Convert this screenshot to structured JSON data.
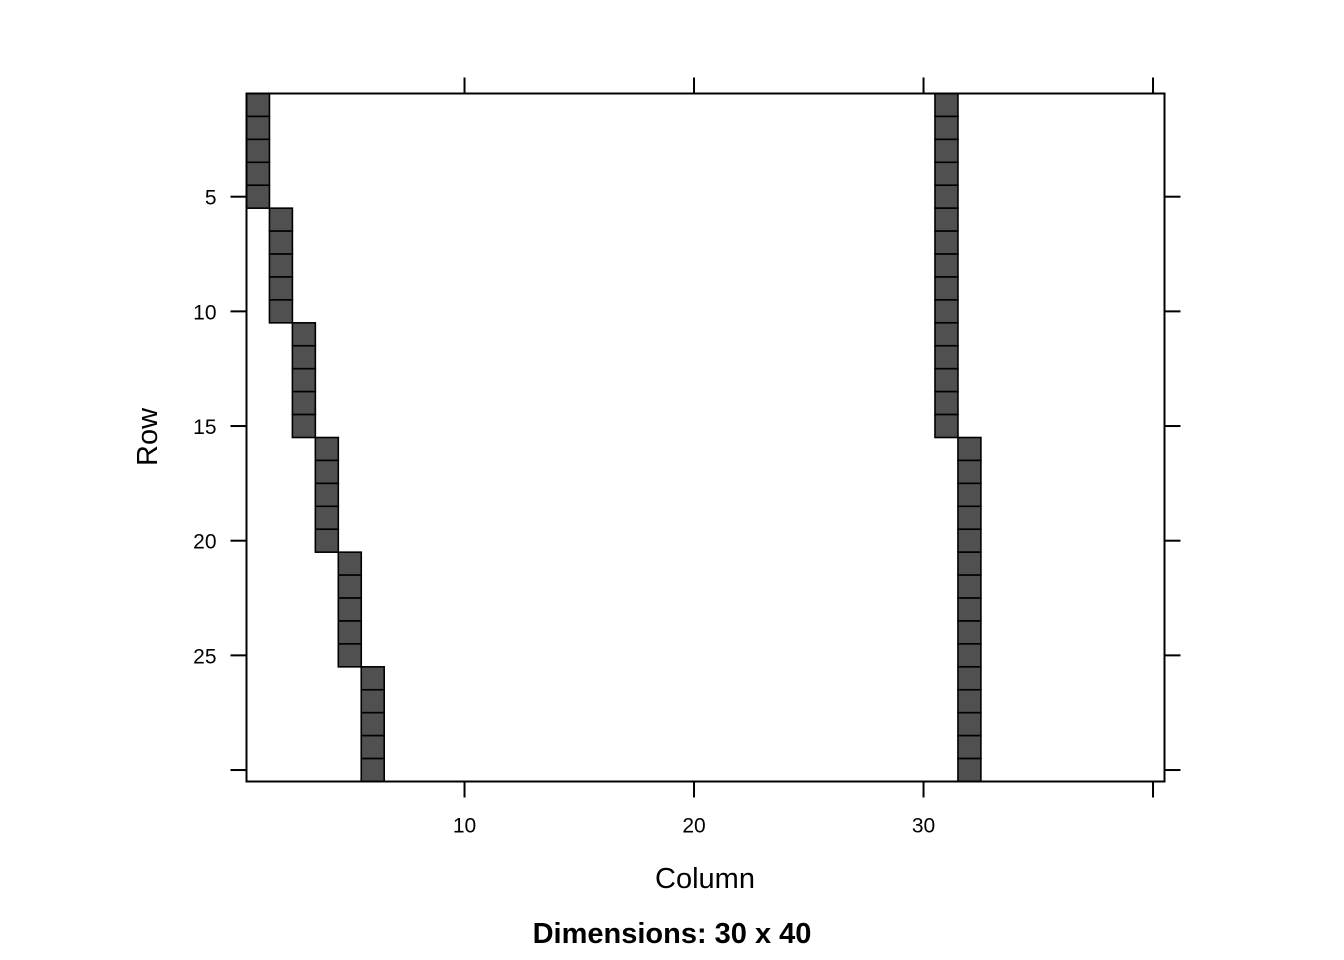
{
  "chart_data": {
    "type": "heatmap",
    "xlabel": "Column",
    "ylabel": "Row",
    "sub": "Dimensions: 30 x 40",
    "nrow": 30,
    "ncol": 40,
    "xlim": [
      0.5,
      40.5
    ],
    "ylim": [
      30.5,
      0.5
    ],
    "x_ticks": [
      10,
      20,
      30
    ],
    "y_ticks": [
      5,
      10,
      15,
      20,
      25
    ],
    "grid": false,
    "legend": "none",
    "cell_fill": "#505050",
    "cell_border": "#000000",
    "nonzero_cells": [
      {
        "row": 1,
        "col": 1
      },
      {
        "row": 2,
        "col": 1
      },
      {
        "row": 3,
        "col": 1
      },
      {
        "row": 4,
        "col": 1
      },
      {
        "row": 5,
        "col": 1
      },
      {
        "row": 6,
        "col": 2
      },
      {
        "row": 7,
        "col": 2
      },
      {
        "row": 8,
        "col": 2
      },
      {
        "row": 9,
        "col": 2
      },
      {
        "row": 10,
        "col": 2
      },
      {
        "row": 11,
        "col": 3
      },
      {
        "row": 12,
        "col": 3
      },
      {
        "row": 13,
        "col": 3
      },
      {
        "row": 14,
        "col": 3
      },
      {
        "row": 15,
        "col": 3
      },
      {
        "row": 16,
        "col": 4
      },
      {
        "row": 17,
        "col": 4
      },
      {
        "row": 18,
        "col": 4
      },
      {
        "row": 19,
        "col": 4
      },
      {
        "row": 20,
        "col": 4
      },
      {
        "row": 21,
        "col": 5
      },
      {
        "row": 22,
        "col": 5
      },
      {
        "row": 23,
        "col": 5
      },
      {
        "row": 24,
        "col": 5
      },
      {
        "row": 25,
        "col": 5
      },
      {
        "row": 26,
        "col": 6
      },
      {
        "row": 27,
        "col": 6
      },
      {
        "row": 28,
        "col": 6
      },
      {
        "row": 29,
        "col": 6
      },
      {
        "row": 30,
        "col": 6
      },
      {
        "row": 1,
        "col": 31
      },
      {
        "row": 2,
        "col": 31
      },
      {
        "row": 3,
        "col": 31
      },
      {
        "row": 4,
        "col": 31
      },
      {
        "row": 5,
        "col": 31
      },
      {
        "row": 6,
        "col": 31
      },
      {
        "row": 7,
        "col": 31
      },
      {
        "row": 8,
        "col": 31
      },
      {
        "row": 9,
        "col": 31
      },
      {
        "row": 10,
        "col": 31
      },
      {
        "row": 11,
        "col": 31
      },
      {
        "row": 12,
        "col": 31
      },
      {
        "row": 13,
        "col": 31
      },
      {
        "row": 14,
        "col": 31
      },
      {
        "row": 15,
        "col": 31
      },
      {
        "row": 16,
        "col": 32
      },
      {
        "row": 17,
        "col": 32
      },
      {
        "row": 18,
        "col": 32
      },
      {
        "row": 19,
        "col": 32
      },
      {
        "row": 20,
        "col": 32
      },
      {
        "row": 21,
        "col": 32
      },
      {
        "row": 22,
        "col": 32
      },
      {
        "row": 23,
        "col": 32
      },
      {
        "row": 24,
        "col": 32
      },
      {
        "row": 25,
        "col": 32
      },
      {
        "row": 26,
        "col": 32
      },
      {
        "row": 27,
        "col": 32
      },
      {
        "row": 28,
        "col": 32
      },
      {
        "row": 29,
        "col": 32
      },
      {
        "row": 30,
        "col": 32
      }
    ]
  }
}
